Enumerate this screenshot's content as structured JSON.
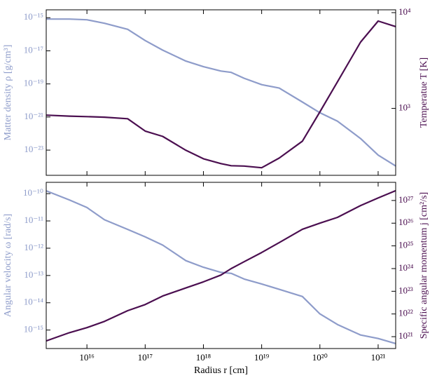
{
  "chart_data": [
    {
      "type": "line",
      "log_x": true,
      "log_y": true,
      "ylabel": "Matter density ρ [g/cm³]",
      "y2label": "Temperatue T [K]",
      "x": [
        2000000000000000.0,
        5000000000000000.0,
        1e+16,
        2e+16,
        5e+16,
        1e+17,
        2e+17,
        5e+17,
        1e+18,
        2e+18,
        3e+18,
        5e+18,
        1e+19,
        2e+19,
        5e+19,
        1e+20,
        2e+20,
        5e+20,
        1e+21,
        2e+21
      ],
      "xlim": [
        2000000000000000.0,
        2e+21
      ],
      "xticks": [
        1e+16,
        1e+17,
        1e+18,
        1e+19,
        1e+20,
        1e+21
      ],
      "ylim": [
        3e-25,
        3e-15
      ],
      "yticks": [
        {
          "value": 1e-15,
          "label": "10⁻¹⁵"
        },
        {
          "value": 1e-17,
          "label": "10⁻¹⁷"
        },
        {
          "value": 1e-19,
          "label": "10⁻¹⁹"
        },
        {
          "value": 1e-21,
          "label": "10⁻²¹"
        },
        {
          "value": 1e-23,
          "label": "10⁻²³"
        }
      ],
      "y2lim": [
        200,
        10700
      ],
      "y2ticks": [
        {
          "value": 1000,
          "label": "10³"
        },
        {
          "value": 10000,
          "label": "10⁴"
        }
      ],
      "series": [
        {
          "name": "Matter density",
          "color": "#8e9cca",
          "values": [
            8.3e-16,
            8.3e-16,
            7.5e-16,
            4.6e-16,
            2e-16,
            4.2e-17,
            1.1e-17,
            2.4e-18,
            1.1e-18,
            6e-19,
            5e-19,
            2.2e-19,
            9e-20,
            5.6e-20,
            8e-21,
            1.8e-21,
            5.6e-22,
            5e-23,
            5e-24,
            1.1e-24
          ]
        },
        {
          "name": "Temperature",
          "color": "#4b0f50",
          "axis": "y2",
          "values": [
            850,
            830,
            820,
            810,
            780,
            580,
            510,
            365,
            298,
            265,
            252,
            250,
            240,
            303,
            455,
            920,
            1890,
            4930,
            8170,
            7150
          ]
        }
      ]
    },
    {
      "type": "line",
      "log_x": true,
      "log_y": true,
      "xlabel": "Radius r [cm]",
      "ylabel": "Angular velocity ω [rad/s]",
      "y2label": "Specific angular momentum j [cm²/s]",
      "x": [
        2000000000000000.0,
        5000000000000000.0,
        1e+16,
        2e+16,
        5e+16,
        1e+17,
        2e+17,
        5e+17,
        1e+18,
        2e+18,
        3e+18,
        5e+18,
        1e+19,
        2e+19,
        5e+19,
        1e+20,
        2e+20,
        5e+20,
        1e+21,
        2e+21
      ],
      "xlim": [
        2000000000000000.0,
        2e+21
      ],
      "xticks": [
        {
          "value": 1e+16,
          "label": "10¹⁶"
        },
        {
          "value": 1e+17,
          "label": "10¹⁷"
        },
        {
          "value": 1e+18,
          "label": "10¹⁸"
        },
        {
          "value": 1e+19,
          "label": "10¹⁹"
        },
        {
          "value": 1e+20,
          "label": "10²⁰"
        },
        {
          "value": 1e+21,
          "label": "10²¹"
        }
      ],
      "ylim": [
        2.1e-16,
        2.6e-10
      ],
      "yticks": [
        {
          "value": 1e-10,
          "label": "10⁻¹⁰"
        },
        {
          "value": 1e-11,
          "label": "10⁻¹¹"
        },
        {
          "value": 1e-12,
          "label": "10⁻¹²"
        },
        {
          "value": 1e-13,
          "label": "10⁻¹³"
        },
        {
          "value": 1e-14,
          "label": "10⁻¹⁴"
        },
        {
          "value": 1e-15,
          "label": "10⁻¹⁵"
        }
      ],
      "y2lim": [
        3e+20,
        6.3e+27
      ],
      "y2ticks": [
        {
          "value": 1e+21,
          "label": "10²¹"
        },
        {
          "value": 1e+22,
          "label": "10²²"
        },
        {
          "value": 1e+23,
          "label": "10²³"
        },
        {
          "value": 1e+24,
          "label": "10²⁴"
        },
        {
          "value": 1e+25,
          "label": "10²⁵"
        },
        {
          "value": 1e+26,
          "label": "10²⁶"
        },
        {
          "value": 1e+27,
          "label": "10²⁷"
        }
      ],
      "series": [
        {
          "name": "Angular velocity",
          "color": "#8e9cca",
          "values": [
            1.27e-10,
            5.9e-11,
            3.1e-11,
            1.1e-11,
            4.9e-12,
            2.6e-12,
            1.3e-12,
            3.5e-13,
            2e-13,
            1.3e-13,
            1.2e-13,
            7.4e-14,
            4.9e-14,
            3.1e-14,
            1.7e-14,
            3.9e-15,
            1.6e-15,
            6.6e-16,
            4.9e-16,
            3.2e-16
          ]
        },
        {
          "name": "Specific angular momentum",
          "color": "#4b0f50",
          "axis": "y2",
          "values": [
            6.5e+20,
            1.5e+21,
            2.5e+21,
            4.7e+21,
            1.4e+22,
            2.6e+22,
            6.2e+22,
            1.4e+23,
            2.6e+23,
            5.2e+23,
            1e+24,
            2e+24,
            5.1e+24,
            1.4e+25,
            5.4e+25,
            1e+26,
            1.8e+26,
            6e+26,
            1.3e+27,
            2.7e+27
          ]
        }
      ]
    }
  ]
}
